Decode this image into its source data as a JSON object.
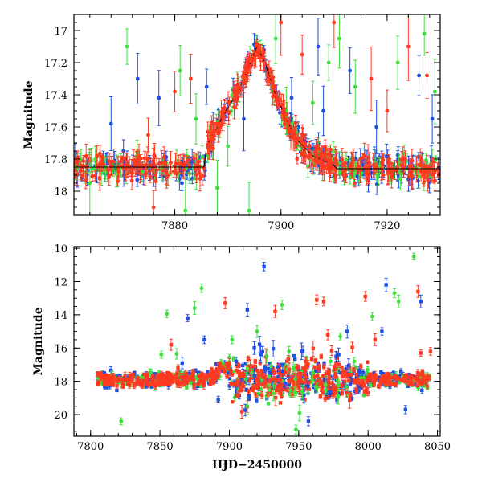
{
  "colors": {
    "blue": "#1f4fe0",
    "red": "#ff3a20",
    "green": "#3ee03e",
    "axis": "#000000"
  },
  "chart_data": [
    {
      "type": "scatter",
      "title": "",
      "xlabel": "",
      "ylabel": "Magnitude",
      "xlim": [
        7861,
        7930
      ],
      "ylim": [
        18.15,
        16.9
      ],
      "y_inverted": true,
      "xticks": [
        7880,
        7900,
        7920
      ],
      "yticks": [
        17,
        17.2,
        17.4,
        17.6,
        17.8,
        18
      ],
      "ytick_labels": [
        "17",
        "17.2",
        "17.4",
        "17.6",
        "17.8",
        "18"
      ],
      "xtick_labels": [
        "7880",
        "7900",
        "7920"
      ],
      "grid": false,
      "legend": "none",
      "series_colors": [
        "blue",
        "red",
        "green"
      ],
      "model_curve": {
        "x": [
          7886,
          7888,
          7890,
          7892,
          7894,
          7895.5,
          7897,
          7899,
          7901,
          7903,
          7906,
          7910
        ],
        "y": [
          17.72,
          17.6,
          17.48,
          17.38,
          17.22,
          17.1,
          17.2,
          17.4,
          17.55,
          17.68,
          17.78,
          17.84
        ]
      },
      "outliers": [
        {
          "series": "green",
          "x": 7864,
          "y": 17.95
        },
        {
          "series": "blue",
          "x": 7868,
          "y": 17.58
        },
        {
          "series": "green",
          "x": 7871,
          "y": 17.1
        },
        {
          "series": "blue",
          "x": 7873,
          "y": 17.3
        },
        {
          "series": "red",
          "x": 7875,
          "y": 17.65
        },
        {
          "series": "blue",
          "x": 7877,
          "y": 17.42
        },
        {
          "series": "red",
          "x": 7880,
          "y": 17.38
        },
        {
          "series": "green",
          "x": 7881,
          "y": 17.25
        },
        {
          "series": "red",
          "x": 7883,
          "y": 17.3
        },
        {
          "series": "green",
          "x": 7884,
          "y": 17.55
        },
        {
          "series": "blue",
          "x": 7886,
          "y": 17.35
        },
        {
          "series": "green",
          "x": 7888,
          "y": 17.98
        },
        {
          "series": "green",
          "x": 7890,
          "y": 17.72
        },
        {
          "series": "blue",
          "x": 7893,
          "y": 17.55
        },
        {
          "series": "green",
          "x": 7899,
          "y": 17.05
        },
        {
          "series": "red",
          "x": 7900,
          "y": 16.95
        },
        {
          "series": "green",
          "x": 7901,
          "y": 17.5
        },
        {
          "series": "blue",
          "x": 7902,
          "y": 17.42
        },
        {
          "series": "red",
          "x": 7904,
          "y": 17.15
        },
        {
          "series": "green",
          "x": 7906,
          "y": 17.45
        },
        {
          "series": "blue",
          "x": 7907,
          "y": 17.1
        },
        {
          "series": "blue",
          "x": 7908,
          "y": 17.5
        },
        {
          "series": "green",
          "x": 7909,
          "y": 17.2
        },
        {
          "series": "red",
          "x": 7910,
          "y": 16.95
        },
        {
          "series": "green",
          "x": 7911,
          "y": 17.05
        },
        {
          "series": "blue",
          "x": 7913,
          "y": 17.25
        },
        {
          "series": "green",
          "x": 7914,
          "y": 17.35
        },
        {
          "series": "red",
          "x": 7917,
          "y": 17.3
        },
        {
          "series": "blue",
          "x": 7918,
          "y": 17.6
        },
        {
          "series": "red",
          "x": 7920,
          "y": 17.5
        },
        {
          "series": "green",
          "x": 7922,
          "y": 17.2
        },
        {
          "series": "red",
          "x": 7924,
          "y": 17.1
        },
        {
          "series": "blue",
          "x": 7926,
          "y": 17.28
        },
        {
          "series": "green",
          "x": 7927,
          "y": 17.02
        },
        {
          "series": "red",
          "x": 7927.5,
          "y": 17.28
        },
        {
          "series": "blue",
          "x": 7928.5,
          "y": 17.55
        },
        {
          "series": "green",
          "x": 7929,
          "y": 17.38
        },
        {
          "series": "green",
          "x": 7894,
          "y": 18.12
        },
        {
          "series": "red",
          "x": 7876,
          "y": 18.1
        },
        {
          "series": "green",
          "x": 7882,
          "y": 18.12
        }
      ]
    },
    {
      "type": "scatter",
      "title": "",
      "xlabel": "HJD−2450000",
      "ylabel": "Magnitude",
      "xlim": [
        7788,
        8052
      ],
      "ylim": [
        21.3,
        9.9
      ],
      "y_inverted": true,
      "xticks": [
        7800,
        7850,
        7900,
        7950,
        8000,
        8050
      ],
      "yticks": [
        10,
        12,
        14,
        16,
        18,
        20
      ],
      "xtick_labels": [
        "7800",
        "7850",
        "7900",
        "7950",
        "8000",
        "8050"
      ],
      "ytick_labels": [
        "10",
        "12",
        "14",
        "16",
        "18",
        "20"
      ],
      "grid": false,
      "legend": "none",
      "series_colors": [
        "blue",
        "red",
        "green"
      ],
      "baseline_mag": 17.9,
      "x_range_data": [
        7805,
        8045
      ],
      "outliers": [
        {
          "series": "green",
          "x": 7822,
          "y": 20.4
        },
        {
          "series": "green",
          "x": 7851,
          "y": 16.4
        },
        {
          "series": "green",
          "x": 7855,
          "y": 13.95
        },
        {
          "series": "red",
          "x": 7858,
          "y": 15.8
        },
        {
          "series": "green",
          "x": 7862,
          "y": 16.35
        },
        {
          "series": "red",
          "x": 7863,
          "y": 17.2
        },
        {
          "series": "blue",
          "x": 7870,
          "y": 14.2
        },
        {
          "series": "blue",
          "x": 7866,
          "y": 16.9
        },
        {
          "series": "green",
          "x": 7875,
          "y": 13.6
        },
        {
          "series": "green",
          "x": 7880,
          "y": 12.4
        },
        {
          "series": "blue",
          "x": 7882,
          "y": 15.5
        },
        {
          "series": "blue",
          "x": 7892,
          "y": 19.1
        },
        {
          "series": "red",
          "x": 7897,
          "y": 13.3
        },
        {
          "series": "green",
          "x": 7902,
          "y": 15.5
        },
        {
          "series": "red",
          "x": 7900,
          "y": 17.0
        },
        {
          "series": "blue",
          "x": 7905,
          "y": 16.8
        },
        {
          "series": "blue",
          "x": 7913,
          "y": 13.7
        },
        {
          "series": "blue",
          "x": 7918,
          "y": 16.0
        },
        {
          "series": "green",
          "x": 7920,
          "y": 15.0
        },
        {
          "series": "blue",
          "x": 7925,
          "y": 11.1
        },
        {
          "series": "green",
          "x": 7927,
          "y": 16.5
        },
        {
          "series": "red",
          "x": 7933,
          "y": 13.8
        },
        {
          "series": "green",
          "x": 7938,
          "y": 13.4
        },
        {
          "series": "green",
          "x": 7943,
          "y": 16.2
        },
        {
          "series": "green",
          "x": 7948,
          "y": 20.9
        },
        {
          "series": "blue",
          "x": 7953,
          "y": 16.2
        },
        {
          "series": "blue",
          "x": 7957,
          "y": 20.4
        },
        {
          "series": "red",
          "x": 7963,
          "y": 13.1
        },
        {
          "series": "red",
          "x": 7968,
          "y": 13.2
        },
        {
          "series": "red",
          "x": 7971,
          "y": 15.2
        },
        {
          "series": "green",
          "x": 7973,
          "y": 16.8
        },
        {
          "series": "blue",
          "x": 7977,
          "y": 16.5
        },
        {
          "series": "green",
          "x": 7980,
          "y": 15.3
        },
        {
          "series": "blue",
          "x": 7985,
          "y": 15.0
        },
        {
          "series": "green",
          "x": 7990,
          "y": 16.8
        },
        {
          "series": "red",
          "x": 7998,
          "y": 12.9
        },
        {
          "series": "green",
          "x": 8003,
          "y": 14.1
        },
        {
          "series": "red",
          "x": 8005,
          "y": 15.5
        },
        {
          "series": "blue",
          "x": 8010,
          "y": 15.0
        },
        {
          "series": "blue",
          "x": 8013,
          "y": 12.2
        },
        {
          "series": "green",
          "x": 8019,
          "y": 12.7
        },
        {
          "series": "green",
          "x": 8022,
          "y": 13.2
        },
        {
          "series": "blue",
          "x": 8027,
          "y": 19.7
        },
        {
          "series": "green",
          "x": 8033,
          "y": 10.5
        },
        {
          "series": "red",
          "x": 8036,
          "y": 12.6
        },
        {
          "series": "blue",
          "x": 8038,
          "y": 13.2
        },
        {
          "series": "red",
          "x": 8038,
          "y": 16.3
        },
        {
          "series": "red",
          "x": 8045,
          "y": 16.2
        }
      ]
    }
  ]
}
